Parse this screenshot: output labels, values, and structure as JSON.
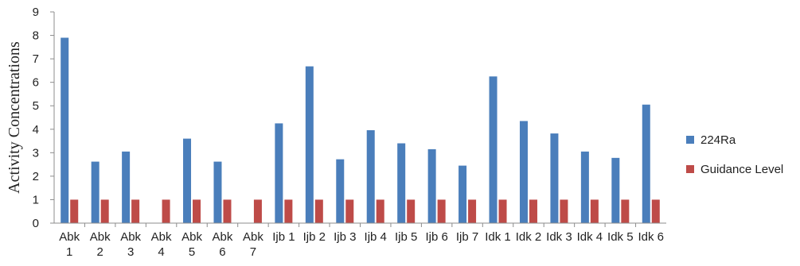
{
  "chart_data": {
    "type": "bar",
    "ylabel": "Activity Concentrations",
    "xlabel": "",
    "ylim": [
      0,
      9
    ],
    "yticks": [
      0,
      1,
      2,
      3,
      4,
      5,
      6,
      7,
      8,
      9
    ],
    "grid": false,
    "legend_position": "right",
    "categories": [
      [
        "Abk",
        "1"
      ],
      [
        "Abk",
        "2"
      ],
      [
        "Abk",
        "3"
      ],
      [
        "Abk",
        "4"
      ],
      [
        "Abk",
        "5"
      ],
      [
        "Abk",
        "6"
      ],
      [
        "Abk",
        "7"
      ],
      [
        "Ijb 1"
      ],
      [
        "Ijb 2"
      ],
      [
        "Ijb 3"
      ],
      [
        "Ijb 4"
      ],
      [
        "Ijb 5"
      ],
      [
        "Ijb 6"
      ],
      [
        "Ijb 7"
      ],
      [
        "Idk 1"
      ],
      [
        "Idk 2"
      ],
      [
        "Idk 3"
      ],
      [
        "Idk 4"
      ],
      [
        "Idk 5"
      ],
      [
        "Idk 6"
      ]
    ],
    "series": [
      {
        "name": "224Ra",
        "color": "#4a7ebb",
        "values": [
          7.9,
          2.62,
          3.05,
          null,
          3.6,
          2.62,
          null,
          4.25,
          6.68,
          2.72,
          3.96,
          3.4,
          3.15,
          2.45,
          6.25,
          4.35,
          3.82,
          3.05,
          2.78,
          5.05
        ]
      },
      {
        "name": "Guidance Level",
        "color": "#be4b48",
        "values": [
          1,
          1,
          1,
          1,
          1,
          1,
          1,
          1,
          1,
          1,
          1,
          1,
          1,
          1,
          1,
          1,
          1,
          1,
          1,
          1
        ]
      }
    ]
  }
}
